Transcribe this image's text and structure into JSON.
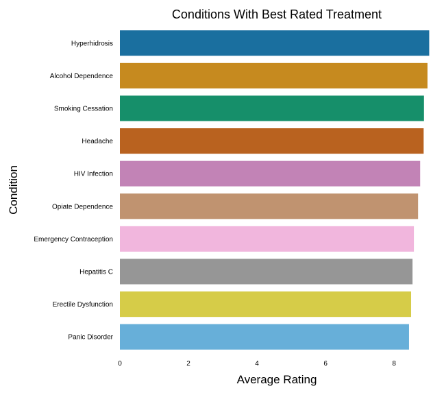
{
  "chart_data": {
    "type": "bar",
    "orientation": "horizontal",
    "title": "Conditions With Best Rated Treatment",
    "xlabel": "Average Rating",
    "ylabel": "Condition",
    "xlim": [
      0,
      9
    ],
    "xticks": [
      0,
      2,
      4,
      6,
      8
    ],
    "grid": false,
    "categories": [
      "Hyperhidrosis",
      "Alcohol Dependence",
      "Smoking Cessation",
      "Headache",
      "HIV Infection",
      "Opiate Dependence",
      "Emergency Contraception",
      "Hepatitis C",
      "Erectile Dysfunction",
      "Panic Disorder"
    ],
    "values": [
      8.89,
      8.84,
      8.74,
      8.73,
      8.63,
      8.57,
      8.45,
      8.41,
      8.37,
      8.31
    ],
    "colors": [
      "#1a6f9f",
      "#c68a1f",
      "#168f6a",
      "#b9621f",
      "#c283b6",
      "#c09370",
      "#f1b6dd",
      "#969696",
      "#d6cc48",
      "#67afd9"
    ]
  }
}
